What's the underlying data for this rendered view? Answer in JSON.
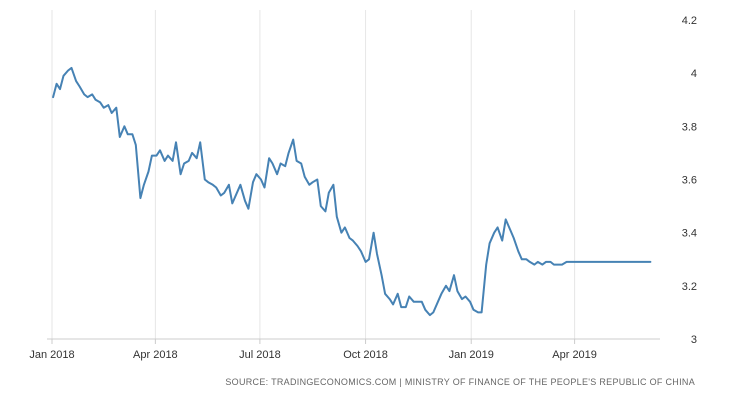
{
  "chart_data": {
    "type": "line",
    "title": "",
    "xlabel": "",
    "ylabel": "",
    "ylim": [
      3,
      4.2
    ],
    "y_ticks": [
      3,
      3.2,
      3.4,
      3.6,
      3.8,
      4,
      4.2
    ],
    "y_tick_labels": [
      "3",
      "3.2",
      "3.4",
      "3.6",
      "3.8",
      "4",
      "4.2"
    ],
    "x_ticks": [
      {
        "date": "2018-01-01",
        "label": "Jan 2018"
      },
      {
        "date": "2018-04-01",
        "label": "Apr 2018"
      },
      {
        "date": "2018-07-01",
        "label": "Jul 2018"
      },
      {
        "date": "2018-10-01",
        "label": "Oct 2018"
      },
      {
        "date": "2019-01-01",
        "label": "Jan 2019"
      },
      {
        "date": "2019-04-01",
        "label": "Apr 2019"
      }
    ],
    "xlim": [
      "2018-01-01",
      "2019-06-10"
    ],
    "grid": "vertical",
    "line_color": "#4682b4",
    "series": [
      {
        "x": [
          "2018-01-02",
          "2018-01-05",
          "2018-01-08",
          "2018-01-11",
          "2018-01-15",
          "2018-01-18",
          "2018-01-22",
          "2018-01-25",
          "2018-01-29",
          "2018-02-01",
          "2018-02-05",
          "2018-02-08",
          "2018-02-12",
          "2018-02-15",
          "2018-02-19",
          "2018-02-22",
          "2018-02-26",
          "2018-03-01",
          "2018-03-05",
          "2018-03-08",
          "2018-03-12",
          "2018-03-15",
          "2018-03-19",
          "2018-03-22",
          "2018-03-26",
          "2018-03-29",
          "2018-04-02",
          "2018-04-05",
          "2018-04-09",
          "2018-04-12",
          "2018-04-16",
          "2018-04-19",
          "2018-04-23",
          "2018-04-26",
          "2018-04-30",
          "2018-05-03",
          "2018-05-07",
          "2018-05-10",
          "2018-05-14",
          "2018-05-17",
          "2018-05-21",
          "2018-05-24",
          "2018-05-28",
          "2018-05-31",
          "2018-06-04",
          "2018-06-07",
          "2018-06-11",
          "2018-06-14",
          "2018-06-18",
          "2018-06-21",
          "2018-06-25",
          "2018-06-28",
          "2018-07-02",
          "2018-07-05",
          "2018-07-09",
          "2018-07-12",
          "2018-07-16",
          "2018-07-19",
          "2018-07-23",
          "2018-07-26",
          "2018-07-30",
          "2018-08-02",
          "2018-08-06",
          "2018-08-09",
          "2018-08-13",
          "2018-08-16",
          "2018-08-20",
          "2018-08-23",
          "2018-08-27",
          "2018-08-30",
          "2018-09-03",
          "2018-09-06",
          "2018-09-10",
          "2018-09-13",
          "2018-09-17",
          "2018-09-20",
          "2018-09-24",
          "2018-09-27",
          "2018-10-01",
          "2018-10-04",
          "2018-10-08",
          "2018-10-11",
          "2018-10-15",
          "2018-10-18",
          "2018-10-22",
          "2018-10-25",
          "2018-10-29",
          "2018-11-01",
          "2018-11-05",
          "2018-11-08",
          "2018-11-12",
          "2018-11-15",
          "2018-11-19",
          "2018-11-22",
          "2018-11-26",
          "2018-11-29",
          "2018-12-03",
          "2018-12-06",
          "2018-12-10",
          "2018-12-13",
          "2018-12-17",
          "2018-12-20",
          "2018-12-24",
          "2018-12-27",
          "2018-12-31",
          "2019-01-03",
          "2019-01-07",
          "2019-01-10",
          "2019-01-14",
          "2019-01-17",
          "2019-01-21",
          "2019-01-24",
          "2019-01-28",
          "2019-01-31",
          "2019-02-04",
          "2019-02-07",
          "2019-02-11",
          "2019-02-14",
          "2019-02-18",
          "2019-02-21",
          "2019-02-25",
          "2019-02-28",
          "2019-03-04",
          "2019-03-07",
          "2019-03-11",
          "2019-03-14",
          "2019-03-18",
          "2019-03-21",
          "2019-03-25",
          "2019-03-28",
          "2019-04-01",
          "2019-04-04",
          "2019-04-08",
          "2019-04-11",
          "2019-04-15",
          "2019-04-18",
          "2019-04-22",
          "2019-04-25",
          "2019-04-29",
          "2019-05-02",
          "2019-05-06",
          "2019-05-09",
          "2019-05-13",
          "2019-05-16",
          "2019-05-20",
          "2019-05-23",
          "2019-05-27",
          "2019-05-30",
          "2019-06-03",
          "2019-06-06"
        ],
        "values": [
          3.91,
          3.96,
          3.94,
          3.99,
          4.01,
          4.02,
          3.97,
          3.95,
          3.92,
          3.91,
          3.92,
          3.9,
          3.89,
          3.87,
          3.88,
          3.85,
          3.87,
          3.76,
          3.8,
          3.77,
          3.77,
          3.73,
          3.53,
          3.58,
          3.63,
          3.69,
          3.69,
          3.71,
          3.67,
          3.69,
          3.67,
          3.74,
          3.62,
          3.66,
          3.67,
          3.7,
          3.68,
          3.74,
          3.6,
          3.59,
          3.58,
          3.57,
          3.54,
          3.55,
          3.58,
          3.51,
          3.55,
          3.58,
          3.52,
          3.49,
          3.59,
          3.62,
          3.6,
          3.57,
          3.68,
          3.66,
          3.62,
          3.66,
          3.65,
          3.7,
          3.75,
          3.67,
          3.66,
          3.61,
          3.58,
          3.59,
          3.6,
          3.5,
          3.48,
          3.55,
          3.58,
          3.46,
          3.4,
          3.42,
          3.38,
          3.37,
          3.35,
          3.33,
          3.29,
          3.3,
          3.4,
          3.32,
          3.24,
          3.17,
          3.15,
          3.13,
          3.17,
          3.12,
          3.12,
          3.16,
          3.14,
          3.14,
          3.14,
          3.11,
          3.09,
          3.1,
          3.14,
          3.17,
          3.2,
          3.18,
          3.24,
          3.18,
          3.15,
          3.16,
          3.14,
          3.11,
          3.1,
          3.1,
          3.28,
          3.36,
          3.4,
          3.42,
          3.37,
          3.45,
          3.41,
          3.38,
          3.33,
          3.3,
          3.3,
          3.29,
          3.28,
          3.29,
          3.28,
          3.29,
          3.29,
          3.28,
          3.28,
          3.28,
          3.29,
          3.29,
          3.29,
          3.29,
          3.29,
          3.29,
          3.29,
          3.29,
          3.29,
          3.29,
          3.29,
          3.29,
          3.29,
          3.29,
          3.29,
          3.29,
          3.29,
          3.29,
          3.29,
          3.29,
          3.29,
          3.29
        ]
      }
    ]
  },
  "source_text": "SOURCE: TRADINGECONOMICS.COM  |  MINISTRY OF FINANCE OF THE PEOPLE'S REPUBLIC OF CHINA"
}
